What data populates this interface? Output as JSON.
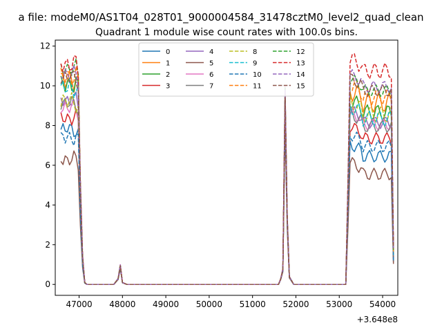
{
  "figure": {
    "suptitle": "a file: modeM0/AS1T04_028T01_9000004584_31478cztM0_level2_quad_clean",
    "title": "Quadrant 1 module wise count rates with 100.0s bins."
  },
  "chart_data": {
    "type": "line",
    "title": "Quadrant 1 module wise count rates with 100.0s bins.",
    "xlabel": "",
    "ylabel": "",
    "x_offset_label": "+3.648e8",
    "xlim": [
      46450,
      54350
    ],
    "ylim": [
      -0.55,
      12.3
    ],
    "xticks": [
      47000,
      48000,
      49000,
      50000,
      51000,
      52000,
      53000,
      54000
    ],
    "xtick_labels": [
      "47000",
      "48000",
      "49000",
      "50000",
      "51000",
      "52000",
      "53000",
      "54000"
    ],
    "yticks": [
      0,
      2,
      4,
      6,
      8,
      10,
      12
    ],
    "ytick_labels": [
      "0",
      "2",
      "4",
      "6",
      "8",
      "10",
      "12"
    ],
    "grid": false,
    "legend": {
      "placement": "top-center",
      "columns": 4
    },
    "x_unit_note": "bin start offsets (s) relative to 3.648e8",
    "bins": {
      "seg1_start": 46580,
      "seg1_step": 50,
      "seg1_count": 13,
      "seg1_rise_fraction": [
        1,
        1,
        1,
        1,
        1,
        1,
        1,
        1,
        0.97,
        0.48,
        0.13,
        0.01,
        0
      ],
      "seg2": [
        [
          47380,
          0
        ],
        [
          47800,
          0
        ],
        [
          47900,
          0.03
        ],
        [
          47950,
          0.1
        ],
        [
          48000,
          0.01
        ],
        [
          48100,
          0
        ],
        [
          51200,
          0
        ],
        [
          51600,
          0
        ],
        [
          51650,
          0.03
        ],
        [
          51700,
          0.08
        ],
        [
          51750,
          1
        ],
        [
          51800,
          0.35
        ],
        [
          51850,
          0.04
        ],
        [
          51950,
          0
        ],
        [
          53150,
          0
        ]
      ],
      "seg3_start": 53150,
      "seg3_step": 50,
      "seg3_count": 23,
      "seg3_rise_fraction": [
        0,
        0.47,
        1,
        1,
        1,
        1,
        1,
        1,
        1,
        1,
        1,
        1,
        1,
        1,
        1,
        1,
        1,
        1,
        1,
        1,
        1,
        1,
        0.18
      ]
    },
    "series": [
      {
        "name": "0",
        "color": "#1f77b4",
        "dash": "solid",
        "base1": 7.8,
        "spike": 9.3,
        "base3": 6.7,
        "amp": 0.3,
        "phase": 0.0
      },
      {
        "name": "1",
        "color": "#ff7f0e",
        "dash": "solid",
        "base1": 10.3,
        "spike": 9.7,
        "base3": 9.4,
        "amp": 0.5,
        "phase": 0.7
      },
      {
        "name": "2",
        "color": "#2ca02c",
        "dash": "solid",
        "base1": 10.1,
        "spike": 9.5,
        "base3": 8.9,
        "amp": 0.4,
        "phase": 1.4
      },
      {
        "name": "3",
        "color": "#d62728",
        "dash": "solid",
        "base1": 8.4,
        "spike": 8.8,
        "base3": 7.6,
        "amp": 0.3,
        "phase": 2.1
      },
      {
        "name": "4",
        "color": "#9467bd",
        "dash": "solid",
        "base1": 9.3,
        "spike": 9.2,
        "base3": 8.4,
        "amp": 0.3,
        "phase": 2.8
      },
      {
        "name": "5",
        "color": "#8c564b",
        "dash": "solid",
        "base1": 6.3,
        "spike": 8.0,
        "base3": 5.8,
        "amp": 0.3,
        "phase": 3.5
      },
      {
        "name": "6",
        "color": "#e377c2",
        "dash": "solid",
        "base1": 8.9,
        "spike": 10.0,
        "base3": 8.3,
        "amp": 0.3,
        "phase": 4.2
      },
      {
        "name": "7",
        "color": "#7f7f7f",
        "dash": "solid",
        "base1": 9.1,
        "spike": 9.1,
        "base3": 8.2,
        "amp": 0.3,
        "phase": 4.9
      },
      {
        "name": "8",
        "color": "#bcbd22",
        "dash": "dashed",
        "base1": 9.2,
        "spike": 9.3,
        "base3": 8.8,
        "amp": 0.4,
        "phase": 5.6
      },
      {
        "name": "9",
        "color": "#17becf",
        "dash": "dashed",
        "base1": 9.9,
        "spike": 9.4,
        "base3": 8.6,
        "amp": 0.4,
        "phase": 0.3
      },
      {
        "name": "10",
        "color": "#1f77b4",
        "dash": "dashed",
        "base1": 7.4,
        "spike": 8.5,
        "base3": 7.2,
        "amp": 0.3,
        "phase": 1.0
      },
      {
        "name": "11",
        "color": "#ff7f0e",
        "dash": "dashed",
        "base1": 10.5,
        "spike": 9.6,
        "base3": 9.7,
        "amp": 0.4,
        "phase": 1.7
      },
      {
        "name": "12",
        "color": "#2ca02c",
        "dash": "dashed",
        "base1": 10.9,
        "spike": 9.9,
        "base3": 10.0,
        "amp": 0.3,
        "phase": 2.4
      },
      {
        "name": "13",
        "color": "#d62728",
        "dash": "dashed",
        "base1": 11.1,
        "spike": 9.6,
        "base3": 11.0,
        "amp": 0.4,
        "phase": 3.1
      },
      {
        "name": "14",
        "color": "#9467bd",
        "dash": "dashed",
        "base1": 10.6,
        "spike": 9.8,
        "base3": 10.2,
        "amp": 0.3,
        "phase": 3.8
      },
      {
        "name": "15",
        "color": "#8c564b",
        "dash": "dashed",
        "base1": 10.4,
        "spike": 9.4,
        "base3": 10.0,
        "amp": 0.3,
        "phase": 4.5
      }
    ]
  }
}
